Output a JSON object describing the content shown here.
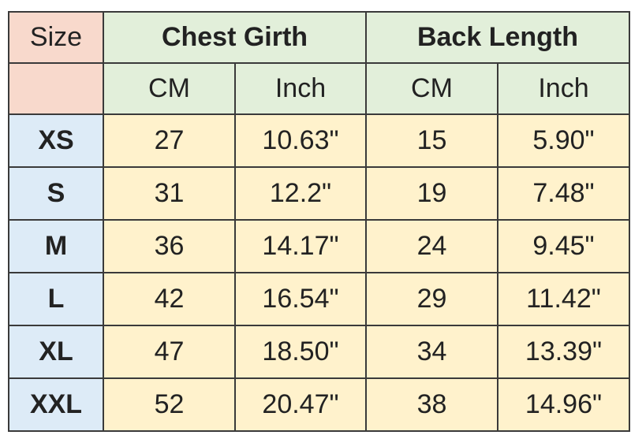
{
  "table": {
    "header": {
      "size": "Size",
      "groups": [
        "Chest Girth",
        "Back Length"
      ],
      "units": [
        "CM",
        "Inch",
        "CM",
        "Inch"
      ]
    },
    "rows": [
      [
        "XS",
        "27",
        "10.63\"",
        "15",
        "5.90\""
      ],
      [
        "S",
        "31",
        "12.2\"",
        "19",
        "7.48\""
      ],
      [
        "M",
        "36",
        "14.17\"",
        "24",
        "9.45\""
      ],
      [
        "L",
        "42",
        "16.54\"",
        "29",
        "11.42\""
      ],
      [
        "XL",
        "47",
        "18.50\"",
        "34",
        "13.39\""
      ],
      [
        "XXL",
        "52",
        "20.47\"",
        "38",
        "14.96\""
      ]
    ]
  }
}
